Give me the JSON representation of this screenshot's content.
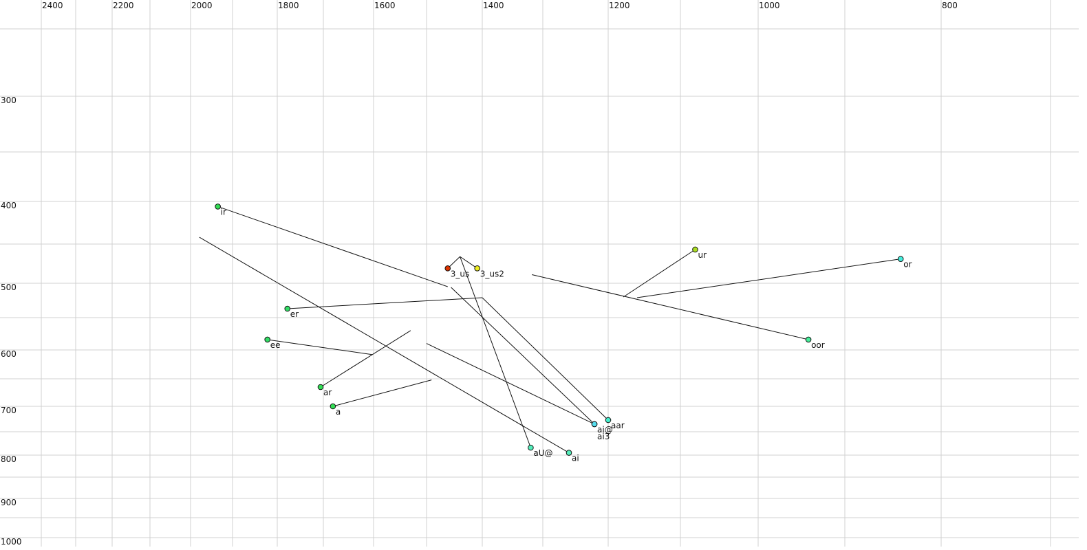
{
  "chart_data": {
    "type": "scatter",
    "title": "",
    "xlabel": "",
    "ylabel": "",
    "x_axis_reversed": true,
    "y_axis_reversed": true,
    "x_scale": "nonlinear (auditory)",
    "y_scale": "nonlinear (auditory)",
    "xlim": [
      2500,
      650
    ],
    "ylim": [
      200,
      1050
    ],
    "grid": true,
    "x_ticks": [
      2400,
      2200,
      2000,
      1800,
      1600,
      1400,
      1200,
      1000,
      800
    ],
    "y_ticks": [
      300,
      400,
      500,
      600,
      700,
      800,
      900,
      1000
    ],
    "points": [
      {
        "label": "ir",
        "x": 1935,
        "y": 406,
        "end": [
          1462,
          505
        ],
        "color": "#33dd55"
      },
      {
        "label": "3_us",
        "x": 1462,
        "y": 481,
        "end": [
          1440,
          466
        ],
        "color": "#dd3300"
      },
      {
        "label": "3_us2",
        "x": 1409,
        "y": 481,
        "end": [
          1440,
          466
        ],
        "color": "#eeee22"
      },
      {
        "label": "ur",
        "x": 1081,
        "y": 457,
        "end": [
          1179,
          520
        ],
        "color": "#aadd22"
      },
      {
        "label": "or",
        "x": 842,
        "y": 469,
        "end": [
          1160,
          521
        ],
        "color": "#44eedd"
      },
      {
        "label": "oor",
        "x": 942,
        "y": 584,
        "end": [
          1318,
          489
        ],
        "color": "#44ee99"
      },
      {
        "label": "er",
        "x": 1778,
        "y": 537,
        "end": [
          1400,
          521
        ],
        "color": "#33dd66"
      },
      {
        "label": "ee",
        "x": 1822,
        "y": 584,
        "end": [
          1603,
          608
        ],
        "color": "#33dd66"
      },
      {
        "label": "ar",
        "x": 1706,
        "y": 665,
        "end": [
          1530,
          570
        ],
        "color": "#33dd55"
      },
      {
        "label": "a",
        "x": 1681,
        "y": 700,
        "end": [
          1491,
          652
        ],
        "color": "#33dd55"
      },
      {
        "label": "aar",
        "x": 1200,
        "y": 727,
        "end": [
          1400,
          521
        ],
        "color": "#44eecc"
      },
      {
        "label": "ai3",
        "x": 1221,
        "y": 735,
        "end": [
          1500,
          590
        ],
        "color": "#55ddee"
      },
      {
        "label": "ai@",
        "x": 1221,
        "y": 735,
        "end": [
          1456,
          506
        ],
        "color": "#55ddee"
      },
      {
        "label": "aU@",
        "x": 1320,
        "y": 784,
        "end": [
          1440,
          466
        ],
        "color": "#55eebb"
      },
      {
        "label": "ai",
        "x": 1260,
        "y": 795,
        "end": [
          1979,
          442
        ],
        "color": "#55eebb"
      }
    ]
  }
}
